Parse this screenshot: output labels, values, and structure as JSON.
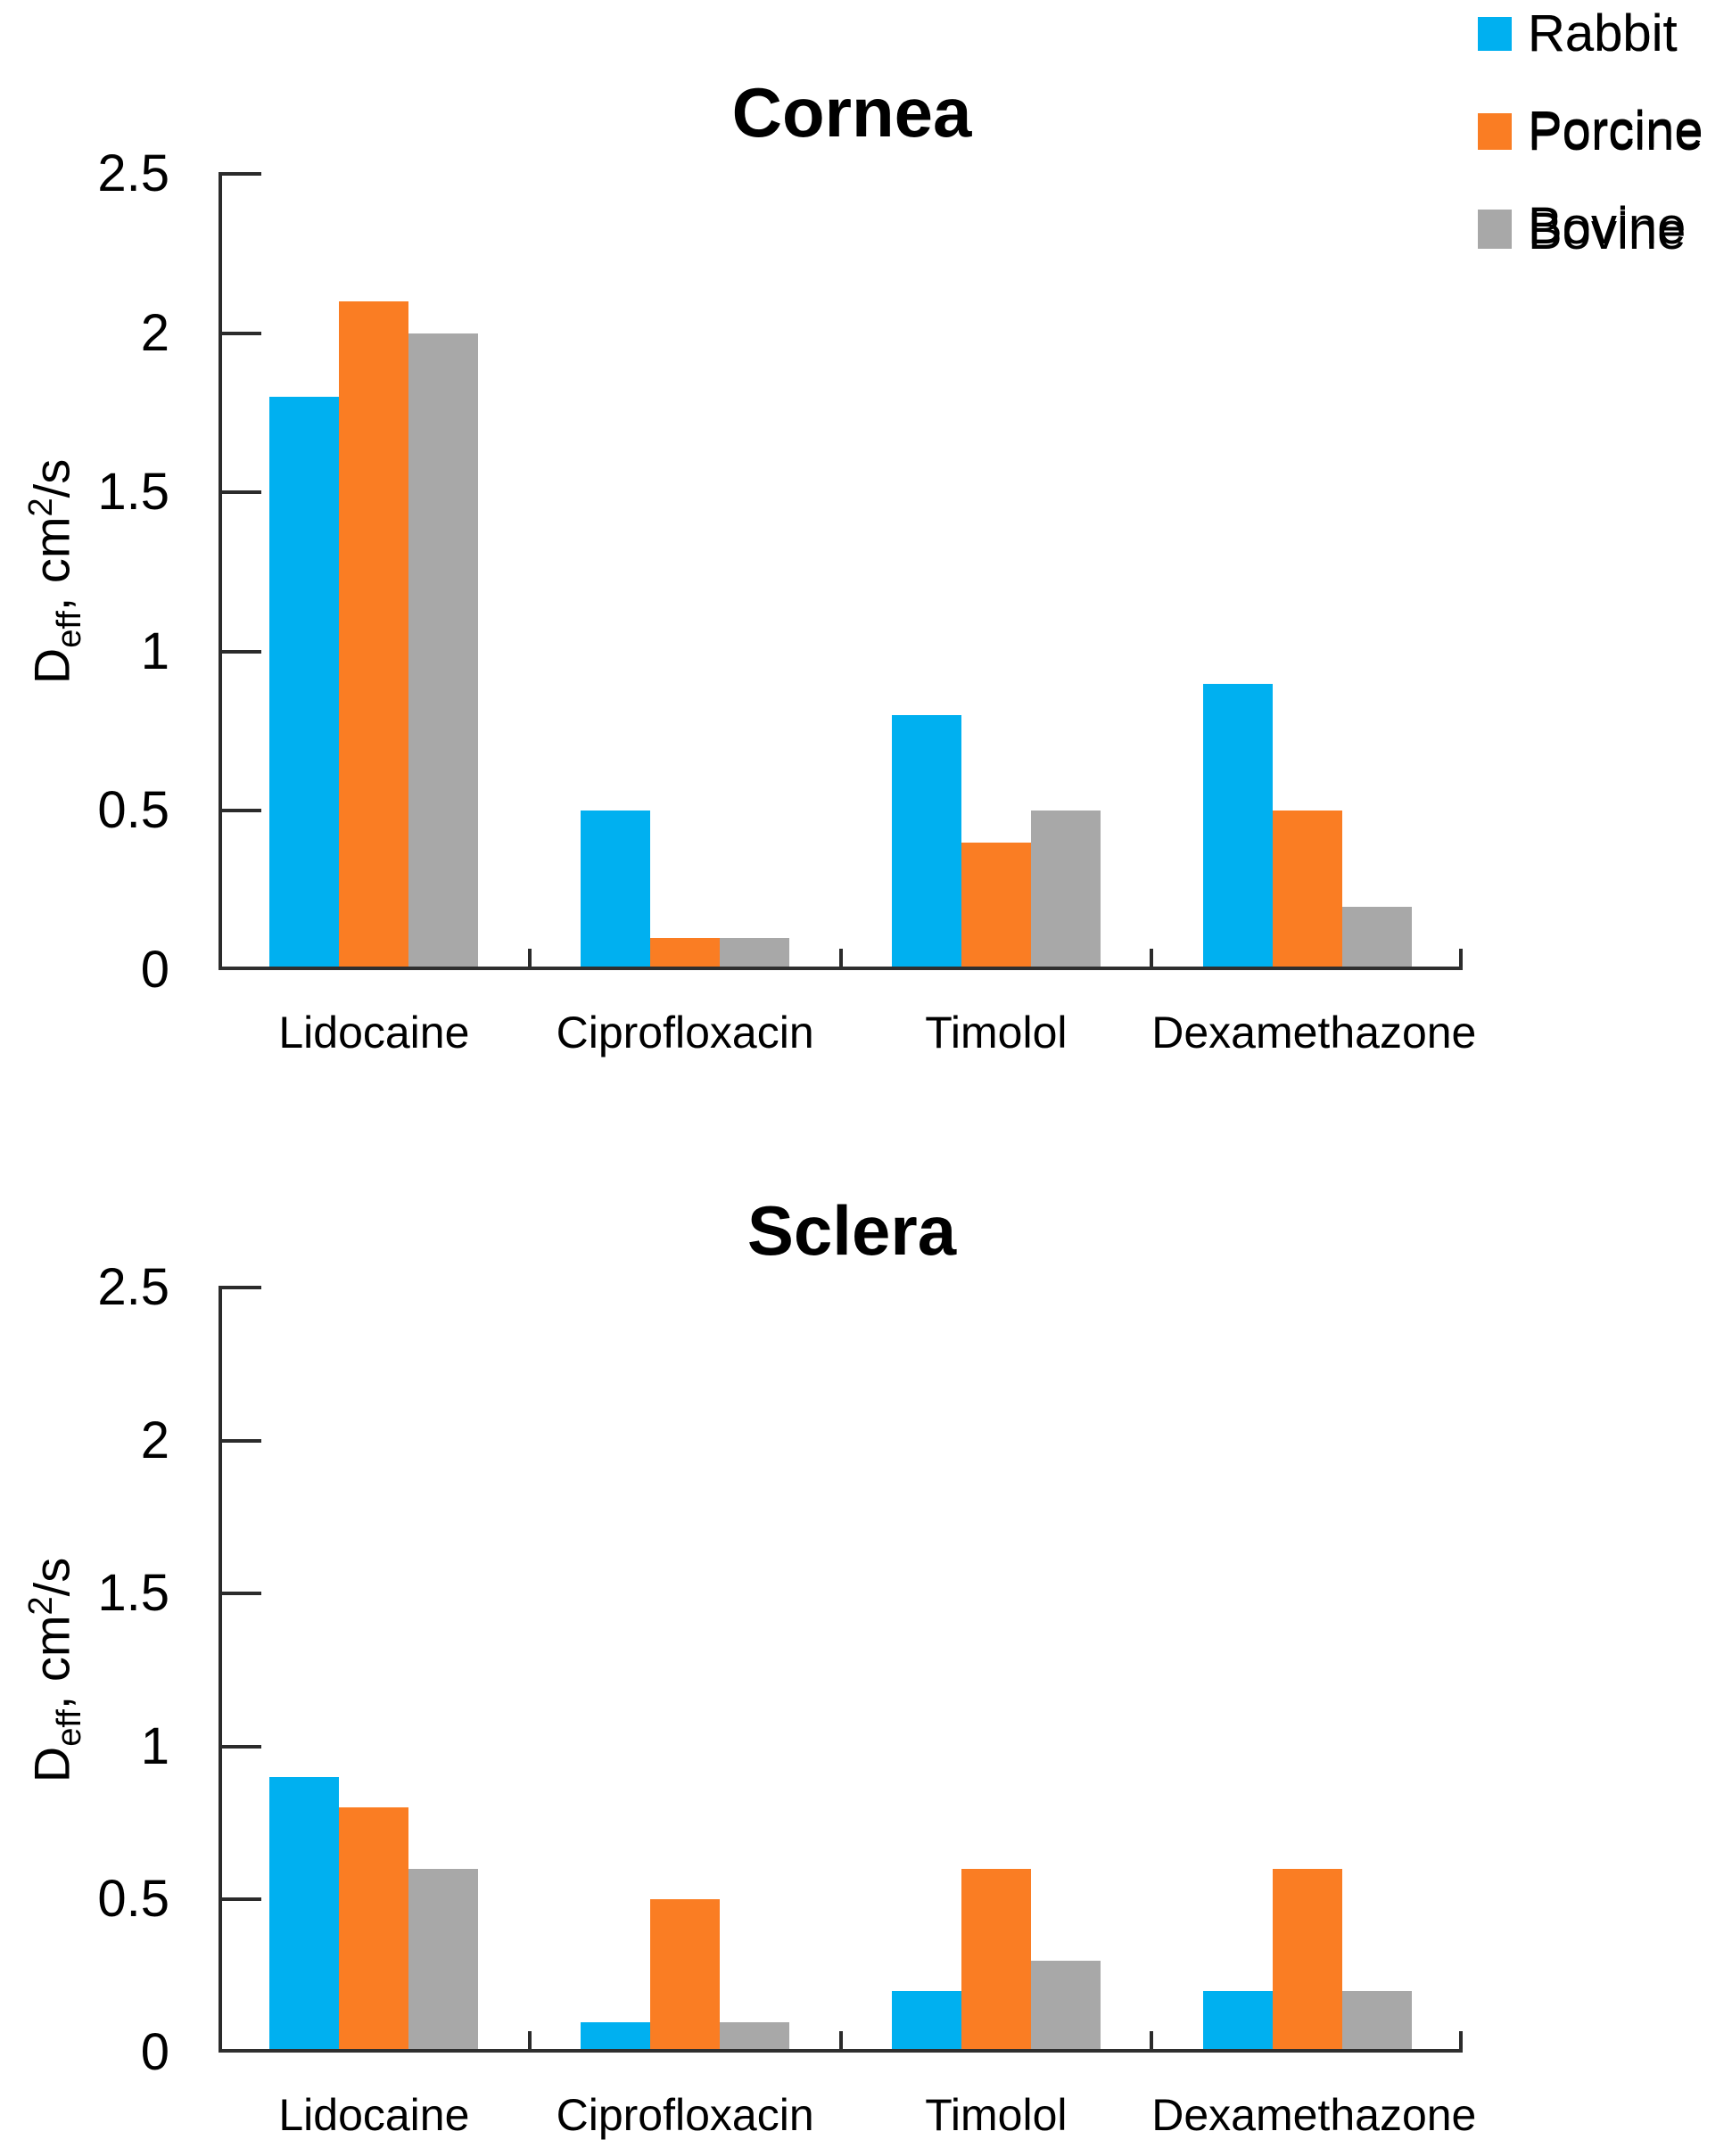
{
  "figure": {
    "background": "#FFFFFF",
    "text_color": "#000000",
    "axis_color": "#2B2B2B"
  },
  "chart_data": [
    {
      "type": "bar",
      "title": "Cornea",
      "categories": [
        "Lidocaine",
        "Ciprofloxacin",
        "Timolol",
        "Dexamethazone"
      ],
      "series": [
        {
          "name": "Rabbit",
          "color": "#00B0F0",
          "values": [
            1.8,
            0.5,
            0.8,
            0.9
          ]
        },
        {
          "name": "Porcine",
          "color": "#FA7D23",
          "values": [
            2.1,
            0.1,
            0.4,
            0.5
          ]
        },
        {
          "name": "Bovine",
          "color": "#A8A8A8",
          "values": [
            2.0,
            0.1,
            0.5,
            0.2
          ]
        }
      ],
      "xlabel": "",
      "ylabel": "Deff, cm2/s",
      "ylabel_parts": {
        "base": "D",
        "sub": "eff",
        "mid": ", cm",
        "sup": "2",
        "end": "/s"
      },
      "ylim": [
        0,
        2.5
      ],
      "ytick_labels": [
        "0",
        "0.5",
        "1",
        "1.5",
        "2",
        "2.5"
      ],
      "grid": false,
      "legend_position": "top-right"
    },
    {
      "type": "bar",
      "title": "Sclera",
      "categories": [
        "Lidocaine",
        "Ciprofloxacin",
        "Timolol",
        "Dexamethazone"
      ],
      "series": [
        {
          "name": "Rabbit",
          "color": "#00B0F0",
          "values": [
            0.9,
            0.1,
            0.2,
            0.2
          ]
        },
        {
          "name": "Porcine",
          "color": "#FA7D23",
          "values": [
            0.8,
            0.5,
            0.6,
            0.6
          ]
        },
        {
          "name": "Bovine",
          "color": "#A8A8A8",
          "values": [
            0.6,
            0.1,
            0.3,
            0.2
          ]
        }
      ],
      "xlabel": "",
      "ylabel": "Deff, cm2/s",
      "ylabel_parts": {
        "base": "D",
        "sub": "eff",
        "mid": ", cm",
        "sup": "2",
        "end": "/s"
      },
      "ylim": [
        0,
        2.5
      ],
      "ytick_labels": [
        "0",
        "0.5",
        "1",
        "1.5",
        "2",
        "2.5"
      ],
      "grid": false,
      "legend_position": "top-right"
    }
  ]
}
